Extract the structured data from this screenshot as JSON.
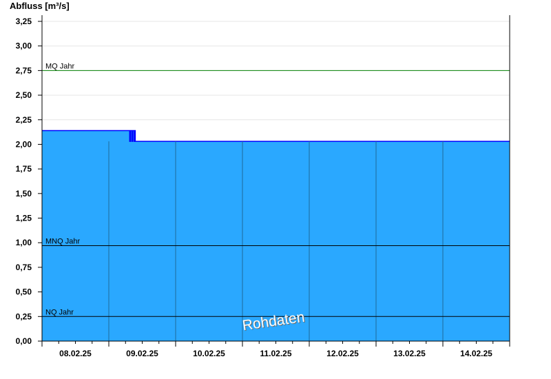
{
  "chart_data": {
    "type": "area",
    "ylabel": "Abfluss [m³/s]",
    "ylim": [
      0,
      3.25
    ],
    "yticks": [
      "0,00",
      "0,25",
      "0,50",
      "0,75",
      "1,00",
      "1,25",
      "1,50",
      "1,75",
      "2,00",
      "2,25",
      "2,50",
      "2,75",
      "3,00",
      "3,25"
    ],
    "ytick_values": [
      0,
      0.25,
      0.5,
      0.75,
      1,
      1.25,
      1.5,
      1.75,
      2,
      2.25,
      2.5,
      2.75,
      3,
      3.25
    ],
    "xlim": [
      "2025-02-08T00:00",
      "2025-02-15T00:00"
    ],
    "xticks": [
      "08.02.25",
      "09.02.25",
      "10.02.25",
      "11.02.25",
      "12.02.25",
      "13.02.25",
      "14.02.25"
    ],
    "grid": true,
    "fill_color": "#2aa8ff",
    "line_color": "#0000ff",
    "series": [
      {
        "points": [
          [
            "2025-02-08T00:00",
            2.14
          ],
          [
            "2025-02-09T07:30",
            2.14
          ],
          [
            "2025-02-09T07:30",
            2.03
          ],
          [
            "2025-02-09T07:45",
            2.03
          ],
          [
            "2025-02-09T07:45",
            2.14
          ],
          [
            "2025-02-09T08:15",
            2.14
          ],
          [
            "2025-02-09T08:15",
            2.03
          ],
          [
            "2025-02-09T08:30",
            2.03
          ],
          [
            "2025-02-09T08:30",
            2.14
          ],
          [
            "2025-02-09T09:00",
            2.14
          ],
          [
            "2025-02-09T09:00",
            2.03
          ],
          [
            "2025-02-09T09:15",
            2.03
          ],
          [
            "2025-02-09T09:15",
            2.14
          ],
          [
            "2025-02-09T09:30",
            2.14
          ],
          [
            "2025-02-09T09:30",
            2.03
          ],
          [
            "2025-02-15T00:00",
            2.03
          ]
        ]
      }
    ],
    "reference_lines": [
      {
        "label": "MQ Jahr",
        "value": 2.75,
        "color": "#008000"
      },
      {
        "label": "MNQ Jahr",
        "value": 0.97,
        "color": "#000000"
      },
      {
        "label": "NQ Jahr",
        "value": 0.25,
        "color": "#000000"
      }
    ],
    "watermark": "Rohdaten"
  }
}
